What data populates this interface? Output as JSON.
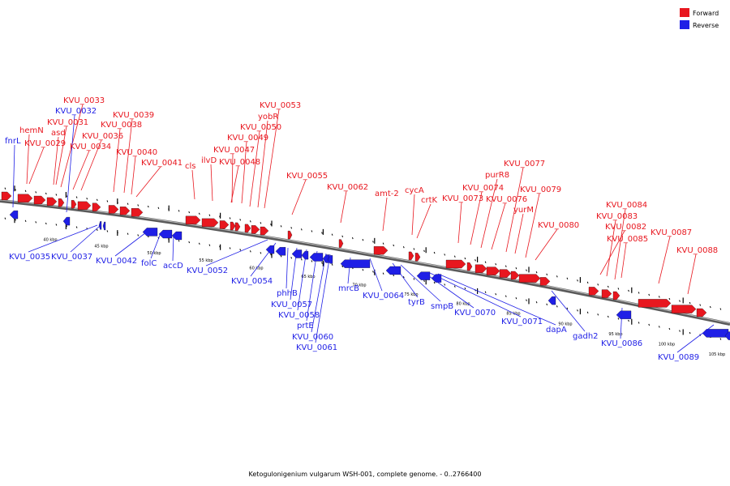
{
  "title": "Ketogulonigenium vulgarum WSH-001, complete genome. - 0..2766400",
  "legend": [
    {
      "label": "Forward",
      "color": "#e8171f"
    },
    {
      "label": "Reverse",
      "color": "#1f1fe6"
    }
  ],
  "colors": {
    "forward": "#e8171f",
    "reverse": "#1f1fe6",
    "backbone": "#8c8c8c"
  },
  "ticks": [
    "40 kbp",
    "45 kbp",
    "50 kbp",
    "55 kbp",
    "60 kbp",
    "65 kbp",
    "70 kbp",
    "75 kbp",
    "80 kbp",
    "85 kbp",
    "90 kbp",
    "95 kbp",
    "100 kbp",
    "105 kbp"
  ],
  "forward_labels": [
    "hemN",
    "KVU_0029",
    "asd",
    "KVU_0031",
    "KVU_0033",
    "KVU_0034",
    "KVU_0036",
    "KVU_0038",
    "KVU_0039",
    "KVU_0040",
    "KVU_0041",
    "cls",
    "ilvD",
    "KVU_0047",
    "KVU_0048",
    "KVU_0049",
    "KVU_0050",
    "yobR",
    "KVU_0053",
    "KVU_0055",
    "KVU_0062",
    "amt-2",
    "cycA",
    "crtK",
    "KVU_0073",
    "KVU_0074",
    "purR8",
    "KVU_0076",
    "KVU_0077",
    "yurM",
    "KVU_0079",
    "KVU_0080",
    "KVU_0082",
    "KVU_0083",
    "KVU_0084",
    "KVU_0085",
    "KVU_0087",
    "KVU_0088"
  ],
  "reverse_labels": [
    "fnrL",
    "KVU_0032",
    "KVU_0035",
    "KVU_0037",
    "KVU_0042",
    "folC",
    "accD",
    "KVU_0052",
    "KVU_0054",
    "phhB",
    "KVU_0057",
    "KVU_0058",
    "prtE",
    "KVU_0060",
    "KVU_0061",
    "mrcB",
    "KVU_0064",
    "tyrB",
    "smpB",
    "KVU_0070",
    "KVU_0071",
    "dapA",
    "gadh2",
    "KVU_0086",
    "KVU_0089"
  ]
}
